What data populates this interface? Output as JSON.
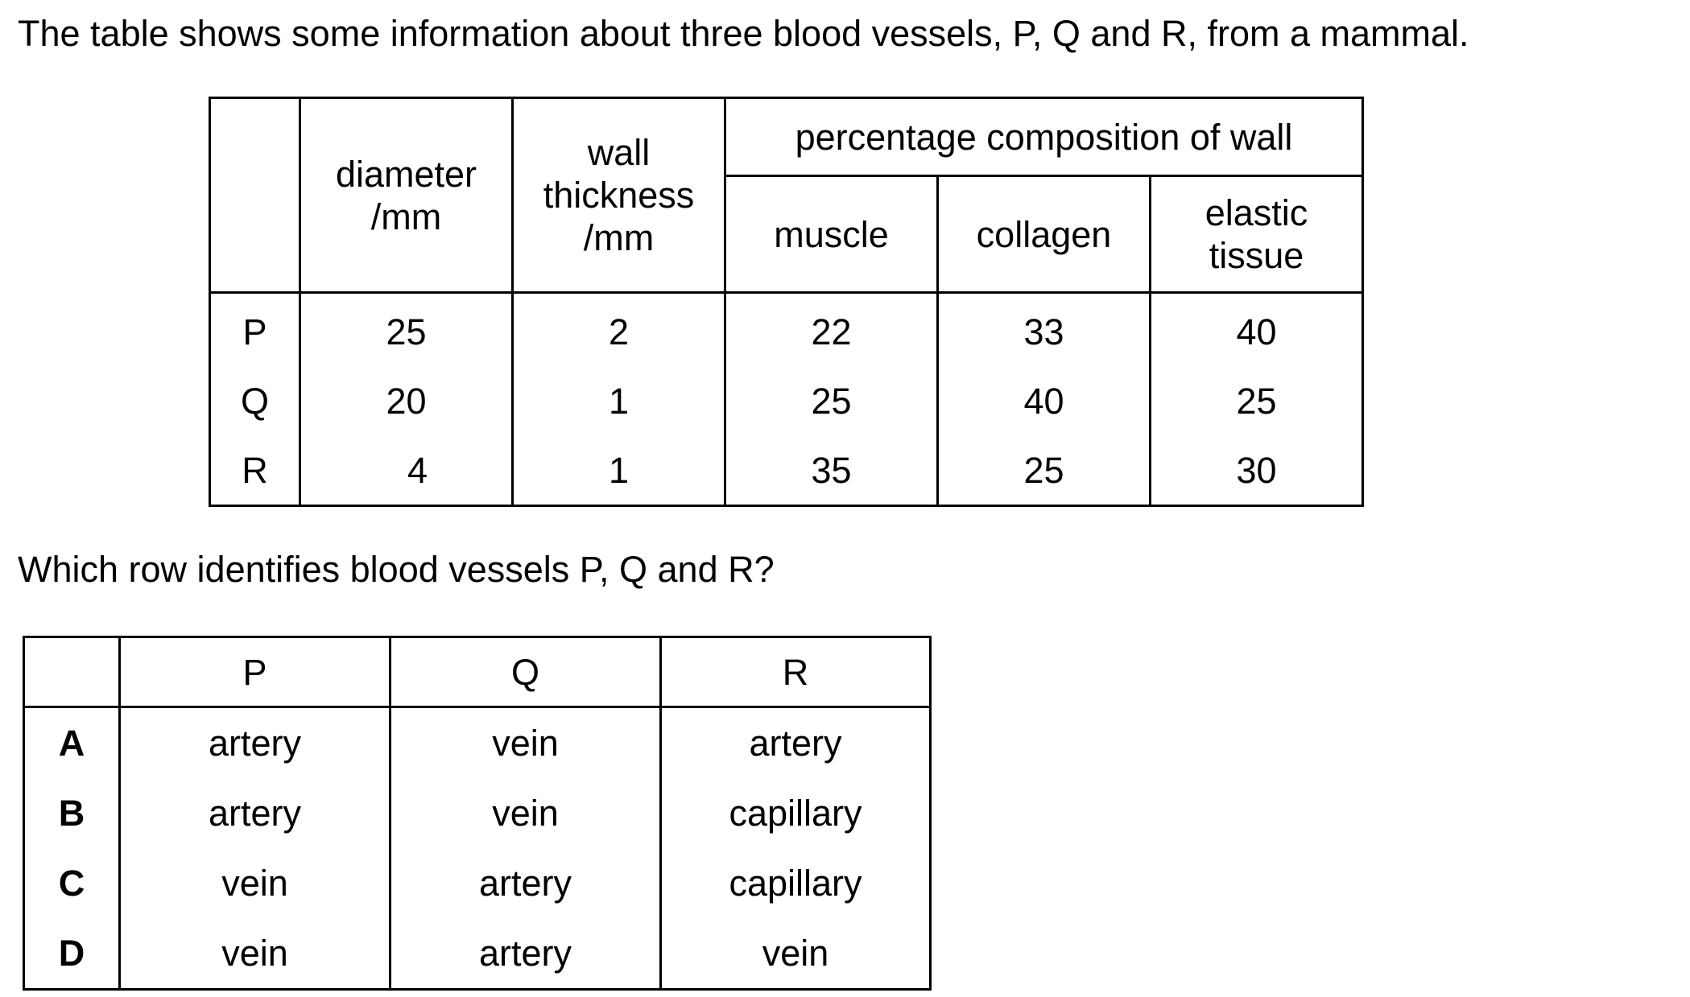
{
  "intro": "The table shows some information about three blood vessels, P, Q and R, from a mammal.",
  "data_table": {
    "headers": {
      "diameter": [
        "diameter",
        "/mm"
      ],
      "wall_thickness": [
        "wall",
        "thickness",
        "/mm"
      ],
      "percentage": "percentage composition of wall",
      "muscle": "muscle",
      "collagen": "collagen",
      "elastic": [
        "elastic",
        "tissue"
      ]
    },
    "rows": [
      {
        "vessel": "P",
        "diameter": "25",
        "wall": "2",
        "muscle": "22",
        "collagen": "33",
        "elastic": "40"
      },
      {
        "vessel": "Q",
        "diameter": "20",
        "wall": "1",
        "muscle": "25",
        "collagen": "40",
        "elastic": "25"
      },
      {
        "vessel": "R",
        "diameter": "4",
        "wall": "1",
        "muscle": "35",
        "collagen": "25",
        "elastic": "30"
      }
    ]
  },
  "question": "Which row identifies blood vessels P, Q and R?",
  "answer_table": {
    "headers": [
      "P",
      "Q",
      "R"
    ],
    "rows": [
      {
        "option": "A",
        "p": "artery",
        "q": "vein",
        "r": "artery"
      },
      {
        "option": "B",
        "p": "artery",
        "q": "vein",
        "r": "capillary"
      },
      {
        "option": "C",
        "p": "vein",
        "q": "artery",
        "r": "capillary"
      },
      {
        "option": "D",
        "p": "vein",
        "q": "artery",
        "r": "vein"
      }
    ]
  }
}
